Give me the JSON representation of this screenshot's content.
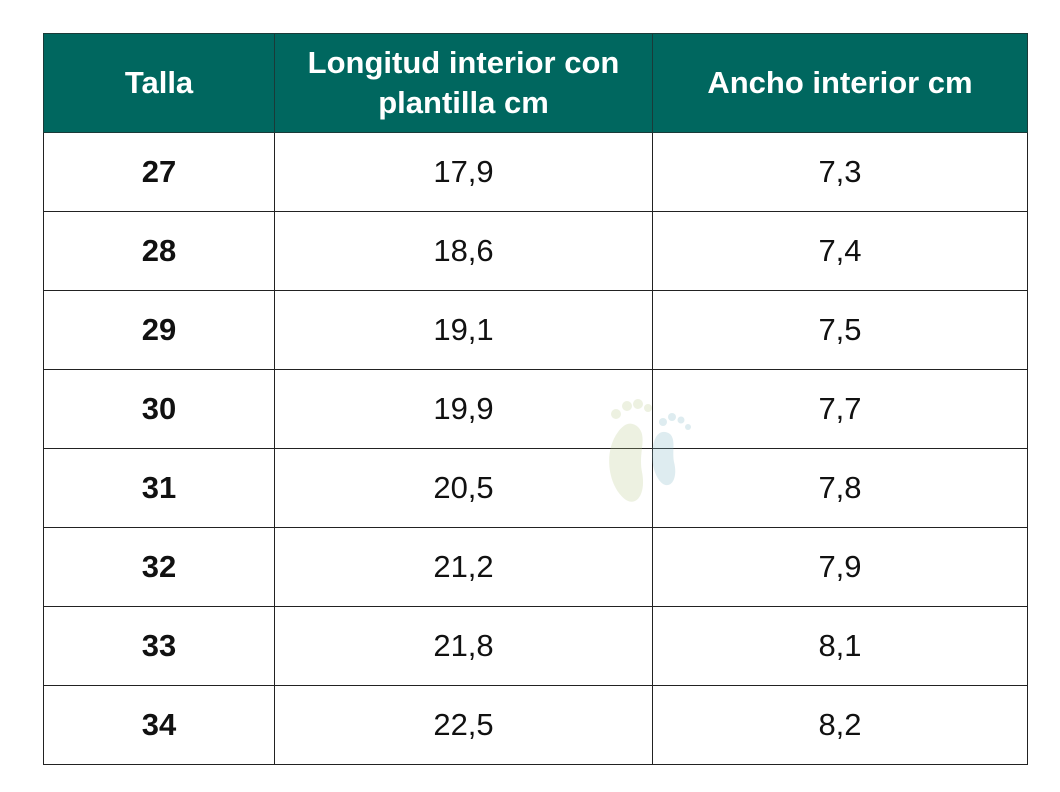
{
  "table": {
    "header": [
      "Talla",
      "Longitud interior con plantilla cm",
      "Ancho interior cm"
    ],
    "rows": [
      [
        "27",
        "17,9",
        "7,3"
      ],
      [
        "28",
        "18,6",
        "7,4"
      ],
      [
        "29",
        "19,1",
        "7,5"
      ],
      [
        "30",
        "19,9",
        "7,7"
      ],
      [
        "31",
        "20,5",
        "7,8"
      ],
      [
        "32",
        "21,2",
        "7,9"
      ],
      [
        "33",
        "21,8",
        "8,1"
      ],
      [
        "34",
        "22,5",
        "8,2"
      ]
    ]
  }
}
